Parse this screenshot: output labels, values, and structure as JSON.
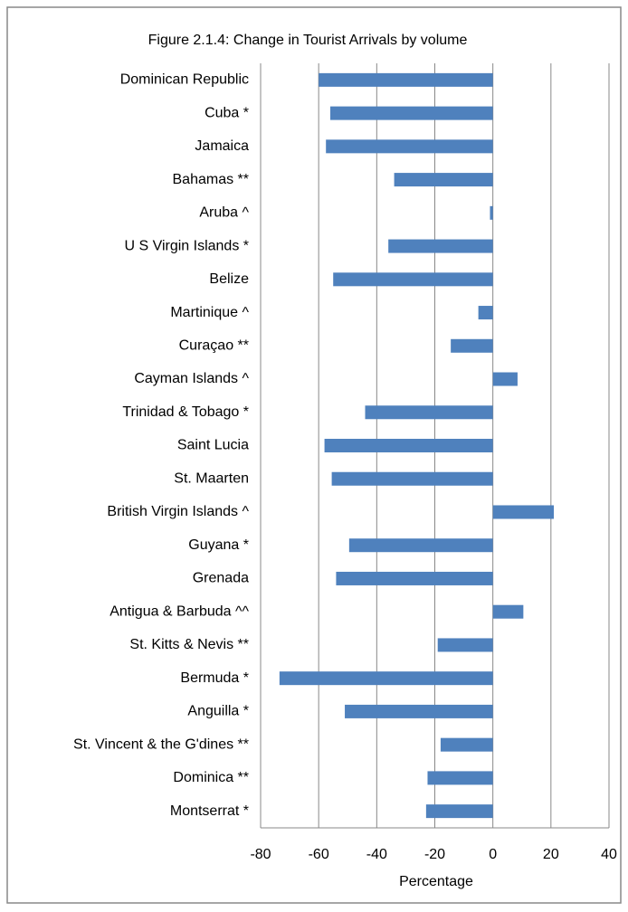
{
  "chart_data": {
    "type": "barh",
    "title": "Figure 2.1.4: Change in Tourist Arrivals by volume",
    "xlabel": "Percentage",
    "categories": [
      "Dominican Republic",
      "Cuba *",
      "Jamaica",
      "Bahamas **",
      "Aruba ^",
      "U S Virgin Islands *",
      "Belize",
      "Martinique ^",
      "Curaçao **",
      "Cayman Islands ^",
      "Trinidad & Tobago *",
      "Saint Lucia",
      "St. Maarten",
      "British Virgin Islands ^",
      "Guyana *",
      "Grenada",
      "Antigua & Barbuda ^^",
      "St. Kitts & Nevis **",
      "Bermuda *",
      "Anguilla *",
      "St. Vincent & the G'dines **",
      "Dominica **",
      "Montserrat *"
    ],
    "values": [
      -60,
      -56,
      -57.5,
      -34,
      -1,
      -36,
      -55,
      -5,
      -14.5,
      8.5,
      -44,
      -58,
      -55.5,
      21,
      -49.5,
      -54,
      10.5,
      -19,
      -73.5,
      -51,
      -18,
      -22.5,
      -23
    ],
    "color": "#4f81bd",
    "xlim": [
      -80,
      40
    ],
    "xticks": [
      -80,
      -60,
      -40,
      -20,
      0,
      20,
      40
    ],
    "grid": true
  }
}
